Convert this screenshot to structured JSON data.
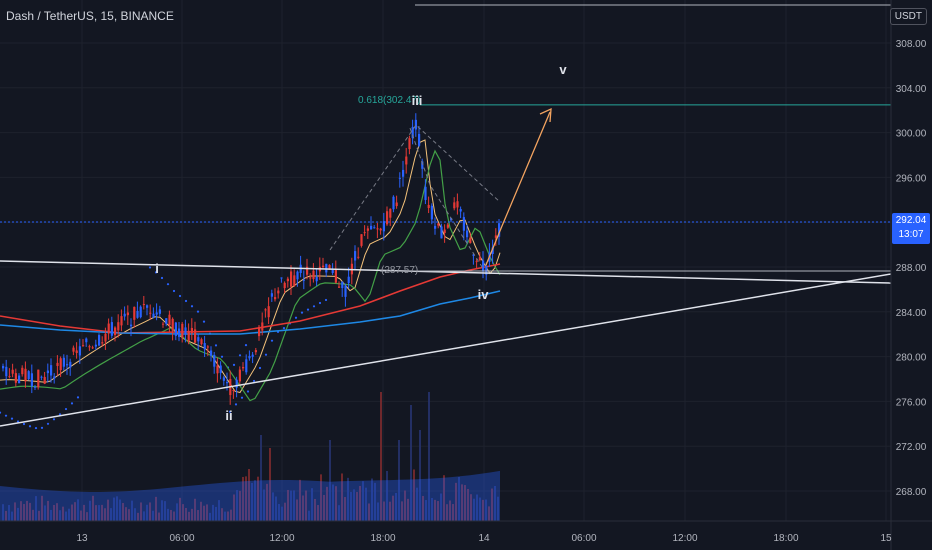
{
  "header": {
    "symbol": "Dash / TetherUS, 15, BINANCE",
    "currency": "USDT"
  },
  "price": {
    "last": "292.04",
    "countdown": "13:07"
  },
  "colors": {
    "bg": "#131722",
    "up": "#2962ff",
    "down": "#e53935",
    "ema_fast": "#f4c27a",
    "ema_mid": "#43a047",
    "ema_slow": "#e53935",
    "ema_long": "#1e88e5",
    "band": "#2962ff",
    "fib": "#26a69a",
    "path": "#f4a460"
  },
  "chart_data": {
    "type": "candlestick",
    "y_axis": {
      "ticks": [
        308,
        304,
        300,
        296,
        292,
        288,
        284,
        280,
        276,
        272,
        268
      ],
      "ylim": [
        265.5,
        309.5
      ]
    },
    "x_axis": {
      "ticks": [
        "13",
        "06:00",
        "12:00",
        "18:00",
        "14",
        "06:00",
        "12:00",
        "18:00",
        "15"
      ]
    },
    "waves": [
      {
        "label": "i",
        "price": 288.0
      },
      {
        "label": "ii",
        "price": 277.0
      },
      {
        "label": "iii",
        "price": 301.0
      },
      {
        "label": "iv",
        "price": 287.6
      },
      {
        "label": "v",
        "price": null
      }
    ],
    "fib_level": {
      "label": "0.618(302.47)",
      "value": 302.47
    },
    "retrace_label": {
      "label": "(287.57)",
      "value": 287.57
    },
    "annotations": [
      "i",
      "ii",
      "iii",
      "iv",
      "v"
    ]
  }
}
